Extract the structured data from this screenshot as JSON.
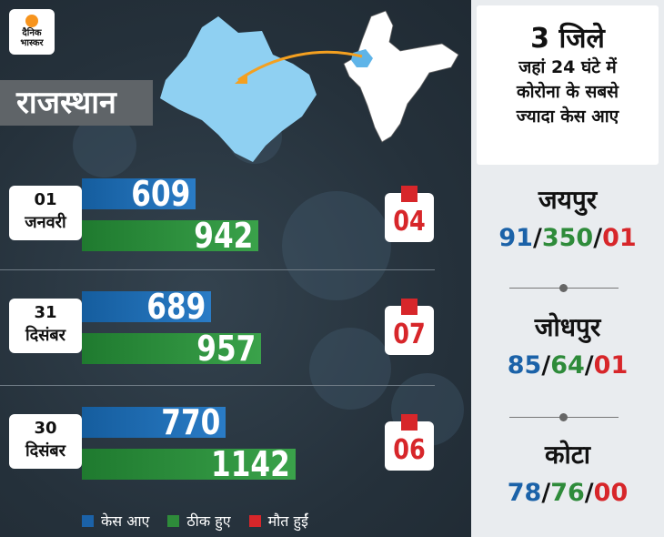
{
  "logo": {
    "line1": "दैनिक",
    "line2": "भास्कर"
  },
  "state": "राजस्थान",
  "panel": {
    "title": "3 जिले",
    "subtitle_lines": [
      "जहां 24 घंटे में",
      "कोरोना के सबसे",
      "ज्यादा केस आए"
    ]
  },
  "districts": [
    {
      "name": "जयपुर",
      "cases": "91",
      "recovered": "350",
      "deaths": "01"
    },
    {
      "name": "जोधपुर",
      "cases": "85",
      "recovered": "64",
      "deaths": "01"
    },
    {
      "name": "कोटा",
      "cases": "78",
      "recovered": "76",
      "deaths": "00"
    }
  ],
  "legend": {
    "cases": "केस आए",
    "recovered": "ठीक हुए",
    "deaths": "मौत हुईं"
  },
  "colors": {
    "cases": "#1b62a8",
    "recovered": "#2e8b3a",
    "deaths": "#d7262a"
  },
  "chart_data": {
    "type": "bar",
    "categories": [
      "01 जनवरी",
      "31 दिसंबर",
      "30 दिसंबर"
    ],
    "date_parts": [
      {
        "day": "01",
        "month": "जनवरी"
      },
      {
        "day": "31",
        "month": "दिसंबर"
      },
      {
        "day": "30",
        "month": "दिसंबर"
      }
    ],
    "series": [
      {
        "name": "केस आए",
        "values": [
          609,
          689,
          770
        ]
      },
      {
        "name": "ठीक हुए",
        "values": [
          942,
          957,
          1142
        ]
      },
      {
        "name": "मौत हुईं",
        "values": [
          "04",
          "07",
          "06"
        ]
      }
    ],
    "legend_position": "bottom"
  }
}
